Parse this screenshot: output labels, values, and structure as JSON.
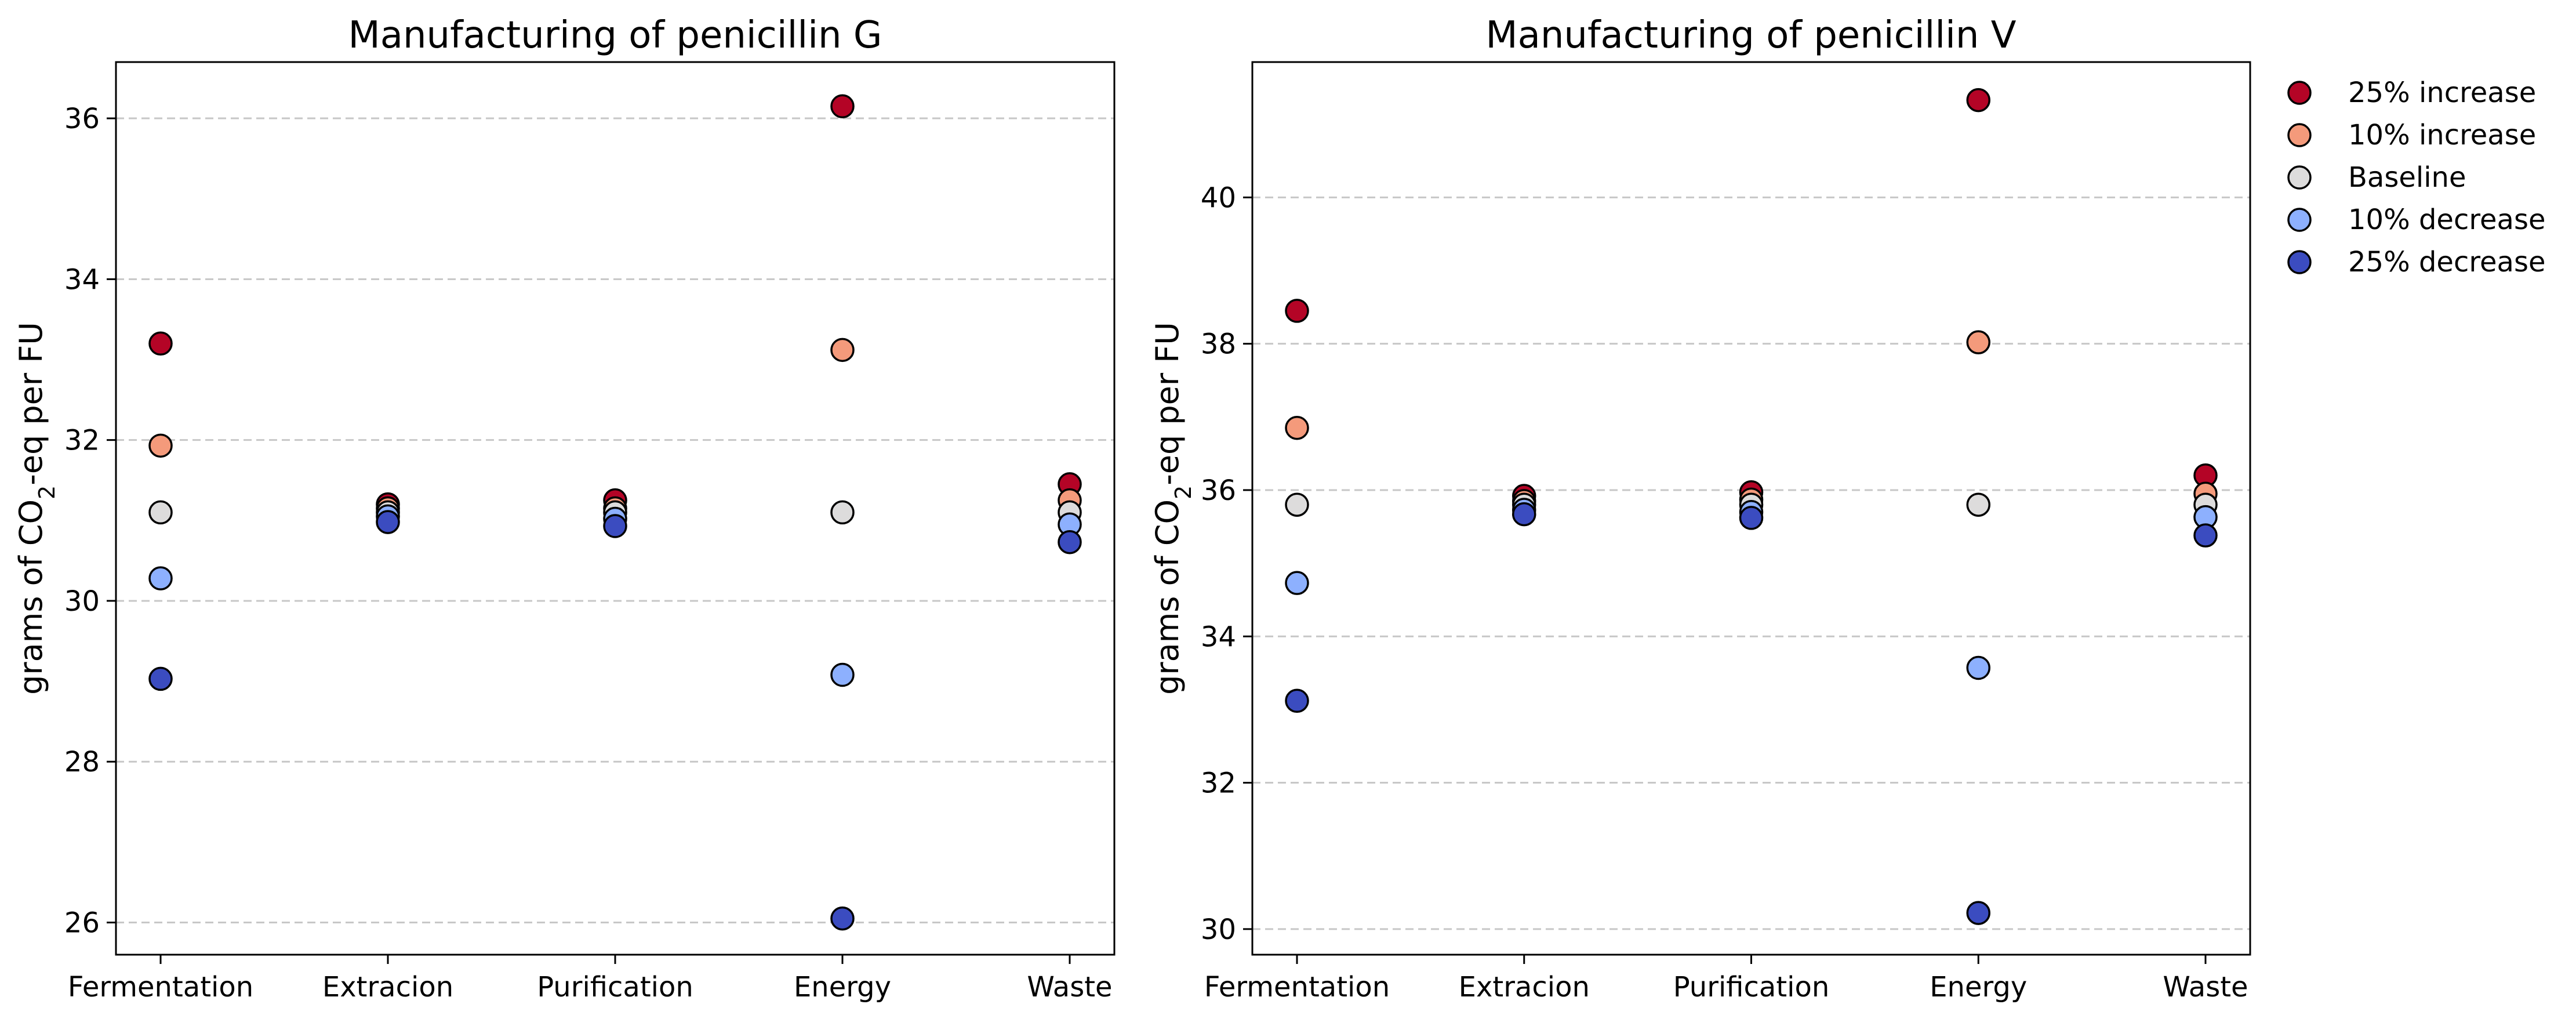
{
  "figure": {
    "charts": [
      {
        "type": "scatter",
        "title": "Manufacturing of penicillin G",
        "ylabel_prefix": "grams of CO",
        "ylabel_sub": "2",
        "ylabel_suffix": "-eq per FU",
        "categories": [
          "Fermentation",
          "Extracion",
          "Purification",
          "Energy",
          "Waste"
        ],
        "ylim": [
          25.6,
          36.7
        ],
        "yticks": [
          26,
          28,
          30,
          32,
          34,
          36
        ],
        "grid": "y-dashed",
        "series": [
          {
            "name": "25% increase",
            "color": "#b40426",
            "values": [
              33.2,
              31.2,
              31.25,
              36.15,
              31.45
            ]
          },
          {
            "name": "10% increase",
            "color": "#f49a7b",
            "values": [
              31.93,
              31.15,
              31.15,
              33.12,
              31.25
            ]
          },
          {
            "name": "Baseline",
            "color": "#dddcdc",
            "values": [
              31.1,
              31.1,
              31.1,
              31.1,
              31.1
            ]
          },
          {
            "name": "10% decrease",
            "color": "#8db0fe",
            "values": [
              30.28,
              31.05,
              31.02,
              29.08,
              30.95
            ]
          },
          {
            "name": "25% decrease",
            "color": "#3b4cc0",
            "values": [
              29.03,
              30.98,
              30.93,
              26.05,
              30.73
            ]
          }
        ]
      },
      {
        "type": "scatter",
        "title": "Manufacturing of penicillin V",
        "ylabel_prefix": "grams of CO",
        "ylabel_sub": "2",
        "ylabel_suffix": "-eq per FU",
        "categories": [
          "Fermentation",
          "Extracion",
          "Purification",
          "Energy",
          "Waste"
        ],
        "ylim": [
          29.65,
          41.85
        ],
        "yticks": [
          30,
          32,
          34,
          36,
          38,
          40
        ],
        "grid": "y-dashed",
        "series": [
          {
            "name": "25% increase",
            "color": "#b40426",
            "values": [
              38.45,
              35.92,
              35.97,
              41.33,
              36.2
            ]
          },
          {
            "name": "10% increase",
            "color": "#f49a7b",
            "values": [
              36.85,
              35.85,
              35.87,
              38.02,
              35.95
            ]
          },
          {
            "name": "Baseline",
            "color": "#dddcdc",
            "values": [
              35.8,
              35.8,
              35.8,
              35.8,
              35.8
            ]
          },
          {
            "name": "10% decrease",
            "color": "#8db0fe",
            "values": [
              34.73,
              35.73,
              35.7,
              33.57,
              35.63
            ]
          },
          {
            "name": "25% decrease",
            "color": "#3b4cc0",
            "values": [
              33.12,
              35.67,
              35.62,
              30.22,
              35.38
            ]
          }
        ]
      }
    ],
    "legend": {
      "placement": "outside-right",
      "entries": [
        {
          "label": "25% increase",
          "color": "#b40426"
        },
        {
          "label": "10% increase",
          "color": "#f49a7b"
        },
        {
          "label": "Baseline",
          "color": "#dddcdc"
        },
        {
          "label": "10% decrease",
          "color": "#8db0fe"
        },
        {
          "label": "25% decrease",
          "color": "#3b4cc0"
        }
      ]
    }
  }
}
